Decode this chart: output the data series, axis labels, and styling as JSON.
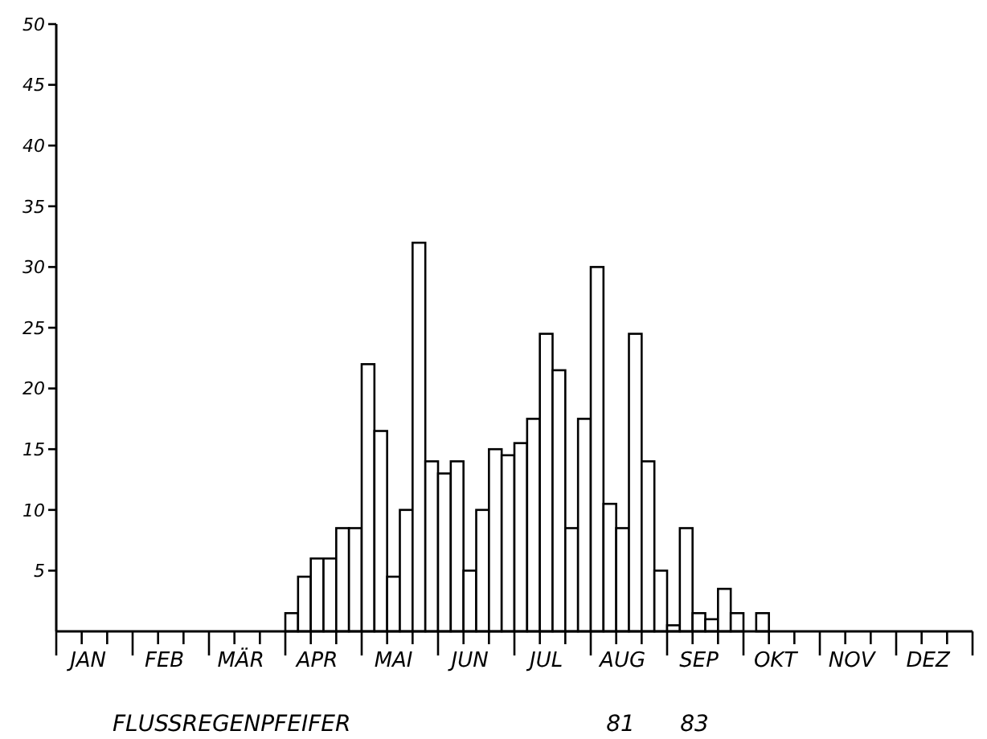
{
  "chart_data": {
    "type": "bar",
    "title": "FLUSSREGENPFEIFER",
    "annotations": [
      "81",
      "83"
    ],
    "categories": [
      null,
      null,
      "JAN",
      null,
      null,
      null,
      null,
      null,
      "FEB",
      null,
      null,
      null,
      null,
      null,
      "MÄR",
      null,
      null,
      null,
      null,
      null,
      "APR",
      null,
      null,
      null,
      null,
      null,
      "MAI",
      null,
      null,
      null,
      null,
      null,
      "JUN",
      null,
      null,
      null,
      null,
      null,
      "JUL",
      null,
      null,
      null,
      null,
      null,
      "AUG",
      null,
      null,
      null,
      null,
      null,
      "SEP",
      null,
      null,
      null,
      null,
      null,
      "OKT",
      null,
      null,
      null,
      null,
      null,
      "NOV",
      null,
      null,
      null,
      null,
      null,
      "DEZ",
      null,
      null,
      null
    ],
    "values": [
      0,
      0,
      0,
      0,
      0,
      0,
      0,
      0,
      0,
      0,
      0,
      0,
      0,
      0,
      0,
      0,
      0,
      0,
      1.5,
      4.5,
      6,
      6,
      8.5,
      8.5,
      22,
      16.5,
      4.5,
      10,
      32,
      14,
      13,
      14,
      5,
      10,
      15,
      14.5,
      15.5,
      17.5,
      24.5,
      21.5,
      8.5,
      17.5,
      30,
      10.5,
      8.5,
      24.5,
      14,
      5,
      0.5,
      8.5,
      1.5,
      1,
      3.5,
      1.5,
      0,
      1.5,
      0,
      0,
      0,
      0,
      0,
      0,
      0,
      0,
      0,
      0,
      0,
      0,
      0,
      0,
      0,
      0
    ],
    "color": "#ffffff",
    "ylim": [
      0,
      50
    ],
    "yticks": [
      5,
      10,
      15,
      20,
      25,
      30,
      35,
      40,
      45,
      50
    ]
  }
}
